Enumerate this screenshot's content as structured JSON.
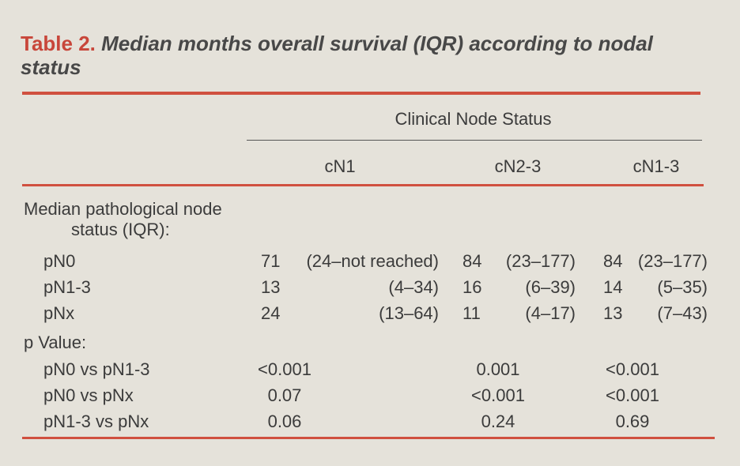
{
  "title": {
    "label": "Table 2.",
    "text": "Median months overall survival (IQR) according to nodal status"
  },
  "table": {
    "spanner": "Clinical Node Status",
    "columns": [
      "cN1",
      "cN2-3",
      "cN1-3"
    ],
    "sections": [
      {
        "label": "Median pathological node status (IQR):",
        "rows": [
          {
            "label": "pN0",
            "cells": [
              {
                "median": "71",
                "iqr": "(24–not reached)"
              },
              {
                "median": "84",
                "iqr": "(23–177)"
              },
              {
                "median": "84",
                "iqr": "(23–177)"
              }
            ]
          },
          {
            "label": "pN1-3",
            "cells": [
              {
                "median": "13",
                "iqr": "(4–34)"
              },
              {
                "median": "16",
                "iqr": "(6–39)"
              },
              {
                "median": "14",
                "iqr": "(5–35)"
              }
            ]
          },
          {
            "label": "pNx",
            "cells": [
              {
                "median": "24",
                "iqr": "(13–64)"
              },
              {
                "median": "11",
                "iqr": "(4–17)"
              },
              {
                "median": "13",
                "iqr": "(7–43)"
              }
            ]
          }
        ]
      },
      {
        "label": "p Value:",
        "rows": [
          {
            "label": "pN0 vs pN1-3",
            "cells": [
              "<0.001",
              "0.001",
              "<0.001"
            ]
          },
          {
            "label": "pN0 vs pNx",
            "cells": [
              "0.07",
              "<0.001",
              "<0.001"
            ]
          },
          {
            "label": "pN1-3 vs pNx",
            "cells": [
              "0.06",
              "0.24",
              "0.69"
            ]
          }
        ]
      }
    ]
  }
}
